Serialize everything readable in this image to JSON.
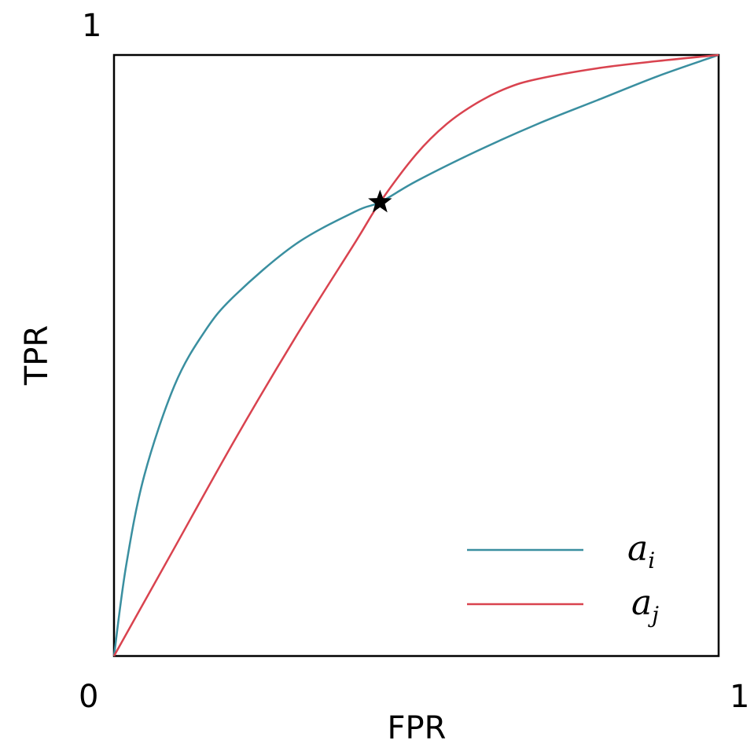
{
  "chart_data": {
    "type": "line",
    "title": "",
    "xlabel": "FPR",
    "ylabel": "TPR",
    "xlim": [
      0,
      1
    ],
    "ylim": [
      0,
      1
    ],
    "x_tick_labels": [
      "0",
      "1"
    ],
    "y_tick_labels": [
      "1"
    ],
    "grid": false,
    "legend_position": "bottom-right",
    "series": [
      {
        "name": "a_i",
        "label_base": "a",
        "label_sub": "i",
        "color": "#3a8fa0",
        "x": [
          0,
          0.02,
          0.05,
          0.1,
          0.15,
          0.2,
          0.3,
          0.4,
          0.44,
          0.5,
          0.6,
          0.7,
          0.8,
          0.9,
          1.0
        ],
        "y": [
          0,
          0.15,
          0.3,
          0.45,
          0.54,
          0.6,
          0.685,
          0.74,
          0.755,
          0.79,
          0.84,
          0.885,
          0.925,
          0.965,
          1.0
        ]
      },
      {
        "name": "a_j",
        "label_base": "a",
        "label_sub": "j",
        "color": "#d9434f",
        "x": [
          0,
          0.05,
          0.1,
          0.2,
          0.3,
          0.4,
          0.44,
          0.5,
          0.55,
          0.6,
          0.65,
          0.7,
          0.8,
          0.9,
          1.0
        ],
        "y": [
          0,
          0.09,
          0.18,
          0.36,
          0.53,
          0.69,
          0.755,
          0.835,
          0.885,
          0.92,
          0.945,
          0.96,
          0.978,
          0.99,
          1.0
        ]
      }
    ],
    "annotations": [
      {
        "type": "star-marker",
        "x": 0.44,
        "y": 0.755,
        "color": "#000000"
      }
    ]
  }
}
